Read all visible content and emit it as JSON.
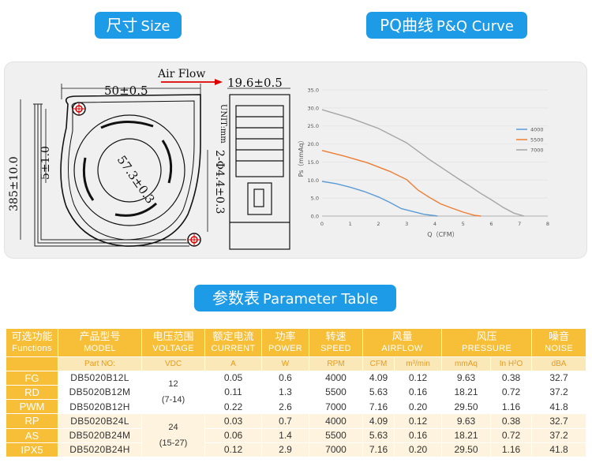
{
  "sections": {
    "size": {
      "zh": "尺寸",
      "en": "Size"
    },
    "pq": {
      "zh": "PQ曲线",
      "en": "P&Q Curve"
    },
    "params": {
      "zh": "参数表",
      "en": "Parameter Table"
    }
  },
  "drawing": {
    "air_flow": "Air Flow",
    "width_dim": "50±0.5",
    "depth_dim": "19.6±0.5",
    "wire_dim": "385±10.0",
    "wire_gap": "5±1.0",
    "hub_dim": "57.3±0.3",
    "hole_dim": "2-Φ4.4±0.3",
    "unit": "UNIT:mm"
  },
  "chart_data": {
    "type": "line",
    "xlabel": "Q（CFM）",
    "ylabel": "Ps（mmAq）",
    "xlim": [
      0,
      8
    ],
    "ylim": [
      0,
      35
    ],
    "x_ticks": [
      "0",
      "1",
      "2",
      "3",
      "4",
      "5",
      "6",
      "7",
      "8"
    ],
    "y_ticks": [
      "0.0",
      "5.0",
      "10.0",
      "15.0",
      "20.0",
      "25.0",
      "30.0",
      "35.0"
    ],
    "grid": "horizontal",
    "legend": "right",
    "series": [
      {
        "name": "4000",
        "color": "#5b9bd5",
        "x": [
          0,
          0.5,
          1.0,
          1.5,
          2.0,
          2.4,
          2.8,
          3.2,
          3.6,
          4.0,
          4.09
        ],
        "y": [
          9.63,
          9.0,
          8.0,
          6.8,
          5.3,
          3.8,
          2.1,
          1.3,
          0.5,
          0.1,
          0
        ]
      },
      {
        "name": "5500",
        "color": "#ed7d31",
        "x": [
          0,
          0.8,
          1.6,
          2.4,
          3.0,
          3.4,
          3.8,
          4.2,
          4.6,
          5.0,
          5.4,
          5.63
        ],
        "y": [
          18.21,
          16.6,
          14.8,
          12.4,
          10.1,
          7.2,
          5.2,
          3.4,
          2.2,
          1.1,
          0.2,
          0
        ]
      },
      {
        "name": "7000",
        "color": "#a5a5a5",
        "x": [
          0,
          1.0,
          2.0,
          3.0,
          3.8,
          4.4,
          4.8,
          5.2,
          5.6,
          6.0,
          6.4,
          6.8,
          7.16
        ],
        "y": [
          29.5,
          27.2,
          24.3,
          20.3,
          15.7,
          12.6,
          10.5,
          8.5,
          6.4,
          4.5,
          2.5,
          0.8,
          0
        ]
      }
    ]
  },
  "table": {
    "headers": [
      {
        "zh": "可选功能",
        "en": "Functions",
        "unit": ""
      },
      {
        "zh": "产品型号",
        "en": "MODEL",
        "unit": "Part NO:"
      },
      {
        "zh": "电压范围",
        "en": "VOLTAGE",
        "unit": "VDC"
      },
      {
        "zh": "额定电流",
        "en": "CURRENT",
        "unit": "A"
      },
      {
        "zh": "功率",
        "en": "POWER",
        "unit": "W"
      },
      {
        "zh": "转速",
        "en": "SPEED",
        "unit": "RPM"
      },
      {
        "zh": "风量",
        "en": "AIRFLOW",
        "unit1": "CFM",
        "unit2": "m³/min"
      },
      {
        "zh": "风压",
        "en": "PRESSURE",
        "unit1": "mmAq",
        "unit2": "In H²O"
      },
      {
        "zh": "噪音",
        "en": "NOISE",
        "unit": "dBA"
      }
    ],
    "functions": [
      "FG",
      "RD",
      "PWM",
      "RP",
      "AS",
      "IPX5"
    ],
    "voltage_groups": [
      {
        "v": "12",
        "range": "(7-14)"
      },
      {
        "v": "24",
        "range": "(15-27)"
      }
    ],
    "rows": [
      {
        "model": "DB5020B12L",
        "current": "0.05",
        "power": "0.6",
        "speed": "4000",
        "cfm": "4.09",
        "m3": "0.12",
        "mmaq": "9.63",
        "inh2o": "0.38",
        "noise": "32.7"
      },
      {
        "model": "DB5020B12M",
        "current": "0.11",
        "power": "1.3",
        "speed": "5500",
        "cfm": "5.63",
        "m3": "0.16",
        "mmaq": "18.21",
        "inh2o": "0.72",
        "noise": "37.2"
      },
      {
        "model": "DB5020B12H",
        "current": "0.22",
        "power": "2.6",
        "speed": "7000",
        "cfm": "7.16",
        "m3": "0.20",
        "mmaq": "29.50",
        "inh2o": "1.16",
        "noise": "41.8"
      },
      {
        "model": "DB5020B24L",
        "current": "0.03",
        "power": "0.7",
        "speed": "4000",
        "cfm": "4.09",
        "m3": "0.12",
        "mmaq": "9.63",
        "inh2o": "0.38",
        "noise": "32.7"
      },
      {
        "model": "DB5020B24M",
        "current": "0.06",
        "power": "1.4",
        "speed": "5500",
        "cfm": "5.63",
        "m3": "0.16",
        "mmaq": "18.21",
        "inh2o": "0.72",
        "noise": "37.2"
      },
      {
        "model": "DB5020B24H",
        "current": "0.12",
        "power": "2.9",
        "speed": "7000",
        "cfm": "7.16",
        "m3": "0.20",
        "mmaq": "29.50",
        "inh2o": "1.16",
        "noise": "41.8"
      }
    ]
  }
}
